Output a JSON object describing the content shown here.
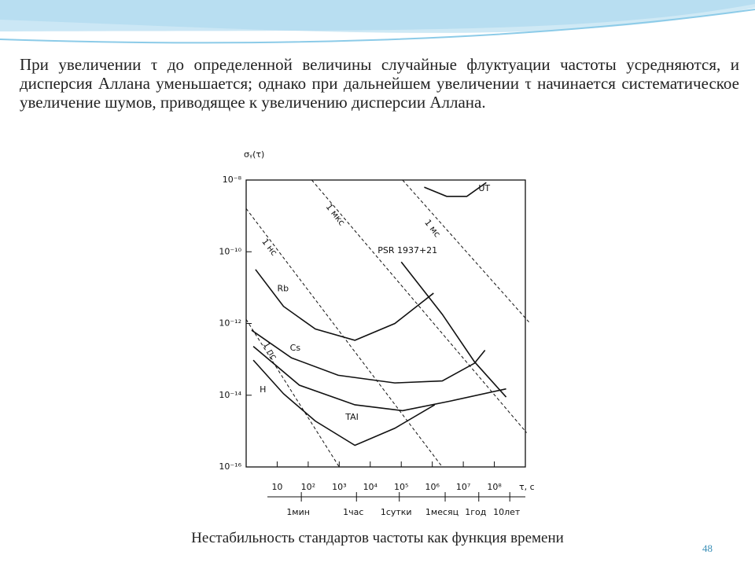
{
  "slide": {
    "text": "При увеличении τ до определенной величины случайные флуктуации частоты усредняются, и дисперсия Аллана уменьшается; однако при дальнейшем увеличении τ начинается систематическое увеличение шумов, приводящее к увеличению дисперсии Аллана.",
    "caption": "Нестабильность стандартов частоты как функция времени",
    "page_number": "48"
  },
  "chart_data": {
    "type": "line",
    "log_x": true,
    "log_y": true,
    "y_label": "σᵧ(τ)",
    "x_label": "τ, с",
    "color": "#111111",
    "xlim": [
      1,
      1000000000
    ],
    "ylim": [
      1e-16,
      1e-08
    ],
    "xticks": [
      10,
      {
        "value": 100,
        "label": "10²"
      },
      {
        "value": 1000,
        "label": "10³"
      },
      {
        "value": 10000,
        "label": "10⁴"
      },
      {
        "value": 100000,
        "label": "10⁵"
      },
      {
        "value": 1000000,
        "label": "10⁶"
      },
      {
        "value": 10000000,
        "label": "10⁷"
      },
      {
        "value": 100000000,
        "label": "10⁸"
      }
    ],
    "yticks": [
      {
        "value": 1e-08,
        "label": "10⁻⁸"
      },
      {
        "value": 1e-10,
        "label": "10⁻¹⁰"
      },
      {
        "value": 1e-12,
        "label": "10⁻¹²"
      },
      {
        "value": 1e-14,
        "label": "10⁻¹⁴"
      },
      {
        "value": 1e-16,
        "label": "10⁻¹⁶"
      }
    ],
    "time_ticks": [
      {
        "value": 60,
        "label": "1мин"
      },
      {
        "value": 3600,
        "label": "1час"
      },
      {
        "value": 86400,
        "label": "1сутки"
      },
      {
        "value": 2600000,
        "label": "1месяц"
      },
      {
        "value": 31500000,
        "label": "1год"
      },
      {
        "value": 315000000,
        "label": "10лет"
      }
    ],
    "series": [
      {
        "name": "Rb",
        "dashed": false,
        "x": [
          2,
          16,
          170,
          3200,
          62000,
          1100000
        ],
        "values": [
          3.2e-11,
          3e-12,
          7e-13,
          3.4e-13,
          1e-12,
          7e-12
        ]
      },
      {
        "name": "Cs",
        "dashed": false,
        "x": [
          1.5,
          29,
          930,
          62000,
          2100000,
          23000000,
          50000000
        ],
        "values": [
          6.5e-13,
          1.1e-13,
          3.6e-14,
          2.2e-14,
          2.5e-14,
          7.8e-14,
          1.8e-13
        ]
      },
      {
        "name": "H",
        "dashed": false,
        "x": [
          1.7,
          16,
          170,
          3200,
          62000,
          1200000
        ],
        "values": [
          9.5e-14,
          1.1e-14,
          1.9e-15,
          4e-16,
          1.2e-15,
          5.4e-15
        ]
      },
      {
        "name": "TAI",
        "dashed": false,
        "x": [
          1.7,
          52,
          3200,
          110000,
          3900000,
          240000000
        ],
        "values": [
          2.3e-13,
          1.9e-14,
          5.4e-15,
          3.7e-15,
          6.9e-15,
          1.5e-14
        ]
      },
      {
        "name": "PSR 1937+21",
        "dashed": false,
        "x": [
          100000,
          2100000,
          23000000,
          240000000
        ],
        "values": [
          5.2e-11,
          1.8e-12,
          8.5e-14,
          8.9e-15
        ]
      },
      {
        "name": "UT",
        "dashed": false,
        "x": [
          550000,
          2900000,
          13000000,
          55000000
        ],
        "values": [
          6.3e-09,
          3.5e-09,
          3.5e-09,
          8.5e-09
        ]
      },
      {
        "name": "1 нс",
        "dashed": true,
        "x": [
          1,
          2100000
        ],
        "values": [
          1.6e-09,
          1e-16
        ]
      },
      {
        "name": "1 мкс",
        "dashed": true,
        "x": [
          130,
          1100000000
        ],
        "values": [
          1e-08,
          9e-16
        ]
      },
      {
        "name": "1 мс",
        "dashed": true,
        "x": [
          110000,
          1300000000
        ],
        "values": [
          1e-08,
          1.1e-12
        ]
      },
      {
        "name": "1 пс",
        "dashed": true,
        "x": [
          1,
          1000
        ],
        "values": [
          1.3e-12,
          1e-16
        ]
      }
    ]
  }
}
